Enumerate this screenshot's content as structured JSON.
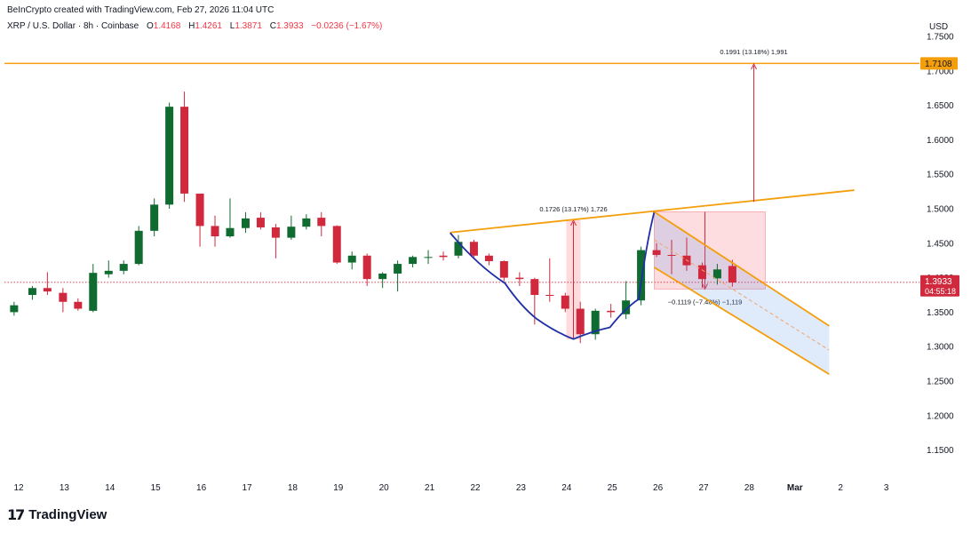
{
  "header": {
    "credit": "BeInCrypto created with TradingView.com, Feb 27, 2026 11:04 UTC",
    "symbol": "XRP / U.S. Dollar · 8h · Coinbase",
    "ohlc": [
      {
        "label": "O",
        "value": "1.4168"
      },
      {
        "label": "H",
        "value": "1.4261"
      },
      {
        "label": "L",
        "value": "1.3871"
      },
      {
        "label": "C",
        "value": "1.3933"
      }
    ],
    "change": "−0.0236 (−1.67%)",
    "currency": "USD"
  },
  "logo": {
    "text": "TradingView",
    "mark": "17"
  },
  "chart_data": {
    "type": "candlestick",
    "ylim": [
      1.12,
      1.75
    ],
    "y_ticks": [
      "1.7500",
      "1.7000",
      "1.6500",
      "1.6000",
      "1.5500",
      "1.5000",
      "1.4500",
      "1.4000",
      "1.3500",
      "1.3000",
      "1.2500",
      "1.2000",
      "1.1500"
    ],
    "x_ticks": [
      "12",
      "13",
      "14",
      "15",
      "16",
      "17",
      "18",
      "19",
      "20",
      "21",
      "22",
      "23",
      "24",
      "25",
      "26",
      "27",
      "28",
      "Mar",
      "2",
      "3"
    ],
    "candles": [
      [
        11.9,
        1.35,
        1.365,
        1.345,
        1.36
      ],
      [
        12.3,
        1.375,
        1.388,
        1.368,
        1.385
      ],
      [
        12.63,
        1.385,
        1.408,
        1.375,
        1.38
      ],
      [
        12.97,
        1.378,
        1.385,
        1.35,
        1.365
      ],
      [
        13.3,
        1.365,
        1.37,
        1.352,
        1.355
      ],
      [
        13.63,
        1.352,
        1.42,
        1.35,
        1.407
      ],
      [
        13.97,
        1.405,
        1.425,
        1.4,
        1.41
      ],
      [
        14.3,
        1.41,
        1.425,
        1.405,
        1.42
      ],
      [
        14.63,
        1.42,
        1.475,
        1.418,
        1.468
      ],
      [
        14.97,
        1.468,
        1.515,
        1.46,
        1.506
      ],
      [
        15.3,
        1.506,
        1.654,
        1.5,
        1.648
      ],
      [
        15.63,
        1.648,
        1.67,
        1.51,
        1.522
      ],
      [
        15.97,
        1.522,
        1.52,
        1.445,
        1.475
      ],
      [
        16.3,
        1.475,
        1.49,
        1.445,
        1.46
      ],
      [
        16.63,
        1.46,
        1.515,
        1.458,
        1.472
      ],
      [
        16.97,
        1.472,
        1.495,
        1.465,
        1.486
      ],
      [
        17.3,
        1.487,
        1.495,
        1.47,
        1.473
      ],
      [
        17.63,
        1.473,
        1.478,
        1.428,
        1.458
      ],
      [
        17.97,
        1.458,
        1.49,
        1.455,
        1.474
      ],
      [
        18.3,
        1.474,
        1.492,
        1.47,
        1.486
      ],
      [
        18.63,
        1.487,
        1.495,
        1.46,
        1.475
      ],
      [
        18.97,
        1.475,
        1.476,
        1.42,
        1.422
      ],
      [
        19.3,
        1.422,
        1.438,
        1.412,
        1.432
      ],
      [
        19.63,
        1.432,
        1.435,
        1.388,
        1.398
      ],
      [
        19.97,
        1.398,
        1.408,
        1.385,
        1.406
      ],
      [
        20.3,
        1.406,
        1.425,
        1.38,
        1.42
      ],
      [
        20.63,
        1.42,
        1.432,
        1.415,
        1.43
      ],
      [
        20.97,
        1.43,
        1.44,
        1.42,
        1.43
      ],
      [
        21.3,
        1.432,
        1.438,
        1.425,
        1.43
      ],
      [
        21.63,
        1.432,
        1.462,
        1.428,
        1.452
      ],
      [
        21.97,
        1.452,
        1.455,
        1.43,
        1.432
      ],
      [
        22.3,
        1.432,
        1.435,
        1.418,
        1.424
      ],
      [
        22.63,
        1.424,
        1.425,
        1.395,
        1.4
      ],
      [
        22.97,
        1.4,
        1.408,
        1.388,
        1.398
      ],
      [
        23.3,
        1.398,
        1.4,
        1.332,
        1.375
      ],
      [
        23.63,
        1.375,
        1.428,
        1.365,
        1.374
      ],
      [
        23.97,
        1.374,
        1.378,
        1.35,
        1.355
      ],
      [
        24.3,
        1.355,
        1.365,
        1.305,
        1.318
      ],
      [
        24.63,
        1.318,
        1.355,
        1.31,
        1.352
      ],
      [
        24.97,
        1.352,
        1.362,
        1.342,
        1.35
      ],
      [
        25.3,
        1.347,
        1.395,
        1.34,
        1.367
      ],
      [
        25.63,
        1.367,
        1.445,
        1.36,
        1.44
      ],
      [
        25.97,
        1.44,
        1.45,
        1.43,
        1.433
      ],
      [
        26.3,
        1.433,
        1.455,
        1.405,
        1.432
      ],
      [
        26.63,
        1.432,
        1.458,
        1.41,
        1.418
      ],
      [
        26.97,
        1.418,
        1.422,
        1.385,
        1.398
      ],
      [
        27.3,
        1.399,
        1.42,
        1.39,
        1.412
      ],
      [
        27.63,
        1.417,
        1.426,
        1.387,
        1.393
      ]
    ],
    "current_price": {
      "price": 1.3933,
      "label": "1.3933",
      "countdown": "04:55:18"
    },
    "resistance": {
      "price": 1.7108,
      "label": "1.7108"
    },
    "measure_1": {
      "from": 1.3105,
      "to": 1.4833,
      "x": 24.15,
      "text": "0.1726 (13.17%) 1,726"
    },
    "measure_2": {
      "from": 1.4955,
      "to": 1.3836,
      "text": "−0.1119 (−7.48%) −1,119"
    },
    "measure_3": {
      "from": 1.51,
      "to": 1.71,
      "x": 28.1,
      "text": "0.1991 (13.18%) 1,991"
    },
    "trendline": {
      "from": [
        21.45,
        1.4655
      ],
      "to": [
        30.3,
        1.527
      ]
    },
    "cup": {
      "points": [
        [
          21.45,
          1.465
        ],
        [
          22.65,
          1.392
        ],
        [
          23.35,
          1.34
        ],
        [
          24.15,
          1.311
        ],
        [
          24.95,
          1.328
        ],
        [
          25.58,
          1.369
        ],
        [
          25.92,
          1.4955
        ]
      ]
    },
    "channel": {
      "upper": [
        [
          25.92,
          1.4955
        ],
        [
          29.75,
          1.33
        ]
      ],
      "lower": [
        [
          25.92,
          1.415
        ],
        [
          29.75,
          1.26
        ]
      ],
      "mid": [
        [
          25.92,
          1.455
        ],
        [
          29.75,
          1.295
        ]
      ]
    }
  }
}
